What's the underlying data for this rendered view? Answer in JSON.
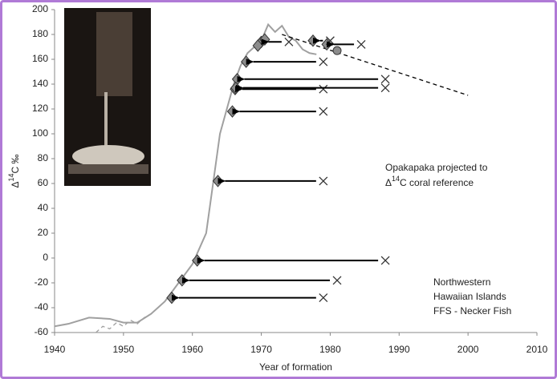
{
  "chart_data": {
    "type": "scatter",
    "x_label": "Year of formation",
    "y_label": {
      "base": "Δ",
      "sup": "14",
      "rest": "C ‰"
    },
    "annotations": [
      {
        "lines": [
          "Opakapaka projected to"
        ],
        "second": {
          "base": "Δ",
          "sup": "14",
          "rest": "C coral reference"
        }
      },
      {
        "lines": [
          "Northwestern",
          "Hawaiian Islands",
          "FFS - Necker Fish"
        ]
      }
    ],
    "xlim": [
      1940,
      2010
    ],
    "xticks": [
      1940,
      1950,
      1960,
      1970,
      1980,
      1990,
      2000,
      2010
    ],
    "ylim": [
      -60,
      200
    ],
    "yticks": [
      -60,
      -40,
      -20,
      0,
      20,
      40,
      60,
      80,
      100,
      120,
      140,
      160,
      180,
      200
    ],
    "series": [
      {
        "type": "line",
        "color": "#a0a0a0",
        "dash": false,
        "x": [
          1940,
          1942,
          1945,
          1948,
          1950,
          1952,
          1954,
          1956,
          1958,
          1960,
          1962,
          1963,
          1964,
          1965,
          1966,
          1967,
          1968,
          1970,
          1971,
          1972,
          1973,
          1974,
          1975,
          1976,
          1977,
          1978
        ],
        "values": [
          -55,
          -53,
          -48,
          -49,
          -52,
          -52,
          -45,
          -35,
          -20,
          -5,
          20,
          60,
          100,
          120,
          140,
          155,
          165,
          175,
          188,
          182,
          187,
          178,
          175,
          168,
          165,
          164
        ]
      },
      {
        "type": "line",
        "color": "#a0a0a0",
        "dash": true,
        "x": [
          1946,
          1947,
          1948,
          1949,
          1950,
          1951,
          1952,
          1953,
          1954,
          1955,
          1956
        ],
        "values": [
          -60,
          -55,
          -57,
          -52,
          -55,
          -50,
          -53,
          -48,
          -45,
          -40,
          -35
        ]
      },
      {
        "type": "line",
        "color": "#000000",
        "dash": true,
        "x": [
          1973,
          2000
        ],
        "values": [
          180,
          131
        ]
      },
      {
        "type": "diamond",
        "color": "#8c8c8c",
        "x": [
          1957,
          1958.5,
          1960.7,
          1963.7,
          1965.8,
          1966.2,
          1966.5,
          1966.3,
          1967.8,
          1970,
          1977.5,
          1979.5,
          1969.5,
          1970.5
        ],
        "values": [
          -32,
          -18,
          -2,
          62,
          118,
          136,
          144,
          137,
          158,
          174,
          175,
          172,
          171,
          176
        ]
      },
      {
        "type": "cross",
        "color": "#333333",
        "x": [
          1979,
          1981,
          1988,
          1979,
          1979,
          1979,
          1988,
          1988,
          1979,
          1974,
          1980,
          1984.5,
          null,
          null
        ],
        "values": [
          -32,
          -18,
          -2,
          62,
          118,
          136,
          144,
          137,
          158,
          174,
          175,
          172,
          null,
          null
        ]
      },
      {
        "type": "circle",
        "color": "#8c8c8c",
        "x": [
          1981
        ],
        "values": [
          167
        ]
      }
    ]
  }
}
